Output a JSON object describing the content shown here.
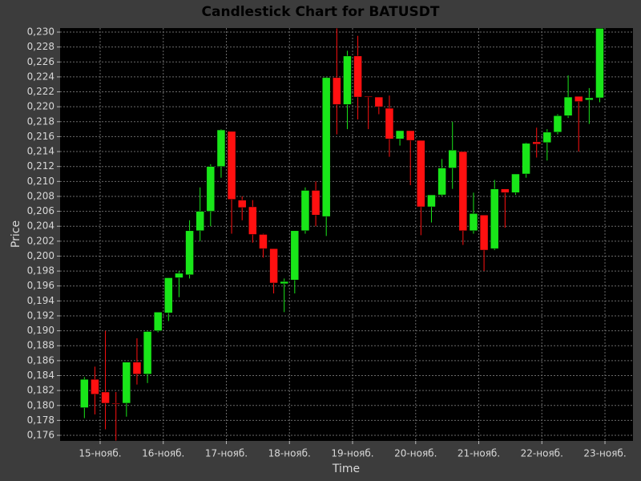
{
  "chart_data": {
    "type": "candlestick",
    "title": "Candlestick Chart for BATUSDT",
    "x_label": "Time",
    "y_label": "Price",
    "x": [
      14.75,
      14.9167,
      15.0833,
      15.25,
      15.4167,
      15.5833,
      15.75,
      15.9167,
      16.0833,
      16.25,
      16.4167,
      16.5833,
      16.75,
      16.9167,
      17.0833,
      17.25,
      17.4167,
      17.5833,
      17.75,
      17.9167,
      18.0833,
      18.25,
      18.4167,
      18.5833,
      18.75,
      18.9167,
      19.0833,
      19.25,
      19.4167,
      19.5833,
      19.75,
      19.9167,
      20.0833,
      20.25,
      20.4167,
      20.5833,
      20.75,
      20.9167,
      21.0833,
      21.25,
      21.4167,
      21.5833,
      21.75,
      21.9167,
      22.0833,
      22.25,
      22.4167,
      22.5833,
      22.75,
      22.9167
    ],
    "open": [
      0.1797,
      0.1835,
      0.1818,
      0.1803,
      0.1803,
      0.1858,
      0.1842,
      0.19,
      0.1924,
      0.1971,
      0.1975,
      0.2034,
      0.206,
      0.212,
      0.2167,
      0.2075,
      0.2066,
      0.2029,
      0.201,
      0.1963,
      0.1968,
      0.2034,
      0.2088,
      0.2053,
      0.2239,
      0.2203,
      0.2268,
      0.2214,
      0.2213,
      0.2198,
      0.2157,
      0.2168,
      0.2155,
      0.2066,
      0.2082,
      0.2118,
      0.214,
      0.2034,
      0.2055,
      0.201,
      0.209,
      0.2085,
      0.211,
      0.2153,
      0.2152,
      0.2166,
      0.2188,
      0.2214,
      0.2209,
      0.2212
    ],
    "high": [
      0.1838,
      0.1852,
      0.19,
      0.1818,
      0.1858,
      0.189,
      0.19,
      0.1925,
      0.1971,
      0.198,
      0.2048,
      0.2092,
      0.2123,
      0.217,
      0.2167,
      0.208,
      0.2075,
      0.203,
      0.201,
      0.197,
      0.2034,
      0.2092,
      0.21,
      0.224,
      0.2305,
      0.2275,
      0.2295,
      0.2214,
      0.2213,
      0.2215,
      0.2168,
      0.2168,
      0.2155,
      0.2082,
      0.213,
      0.218,
      0.214,
      0.2085,
      0.2055,
      0.2102,
      0.209,
      0.211,
      0.2152,
      0.2172,
      0.217,
      0.219,
      0.2242,
      0.2214,
      0.2225,
      0.2305
    ],
    "low": [
      0.1783,
      0.1788,
      0.1768,
      0.1753,
      0.1785,
      0.1828,
      0.183,
      0.1898,
      0.1913,
      0.1945,
      0.197,
      0.202,
      0.204,
      0.2105,
      0.203,
      0.2048,
      0.2018,
      0.1998,
      0.195,
      0.1925,
      0.195,
      0.203,
      0.204,
      0.2027,
      0.2163,
      0.217,
      0.2183,
      0.217,
      0.219,
      0.2133,
      0.2148,
      0.2095,
      0.2028,
      0.2045,
      0.208,
      0.209,
      0.2015,
      0.203,
      0.198,
      0.2008,
      0.2038,
      0.2082,
      0.2105,
      0.2132,
      0.2128,
      0.2163,
      0.2185,
      0.214,
      0.2177,
      0.2206
    ],
    "close": [
      0.1835,
      0.1815,
      0.1803,
      0.1802,
      0.1858,
      0.1842,
      0.1899,
      0.1925,
      0.1971,
      0.1977,
      0.2034,
      0.206,
      0.212,
      0.2169,
      0.2076,
      0.2065,
      0.2029,
      0.201,
      0.1964,
      0.1966,
      0.2034,
      0.2088,
      0.2055,
      0.2239,
      0.2203,
      0.2268,
      0.2213,
      0.2213,
      0.22,
      0.2157,
      0.2168,
      0.2155,
      0.2066,
      0.2082,
      0.2118,
      0.2142,
      0.2034,
      0.2057,
      0.2008,
      0.209,
      0.2085,
      0.211,
      0.2151,
      0.215,
      0.2166,
      0.2188,
      0.2213,
      0.2207,
      0.2212,
      0.2305
    ],
    "up_color": "#19e619",
    "down_color": "#ff1010",
    "xlim": [
      14.365,
      23.444
    ],
    "xticks": [
      {
        "value": 15,
        "label": "15-нояб."
      },
      {
        "value": 16,
        "label": "16-нояб."
      },
      {
        "value": 17,
        "label": "17-нояб."
      },
      {
        "value": 18,
        "label": "18-нояб."
      },
      {
        "value": 19,
        "label": "19-нояб."
      },
      {
        "value": 20,
        "label": "20-нояб."
      },
      {
        "value": 21,
        "label": "21-нояб."
      },
      {
        "value": 22,
        "label": "22-нояб."
      },
      {
        "value": 23,
        "label": "23-нояб."
      }
    ],
    "ylim": [
      0.17525,
      0.23054
    ],
    "yticks": [
      {
        "value": 0.176,
        "label": "0,176"
      },
      {
        "value": 0.178,
        "label": "0,178"
      },
      {
        "value": 0.18,
        "label": "0,180"
      },
      {
        "value": 0.182,
        "label": "0,182"
      },
      {
        "value": 0.184,
        "label": "0,184"
      },
      {
        "value": 0.186,
        "label": "0,186"
      },
      {
        "value": 0.188,
        "label": "0,188"
      },
      {
        "value": 0.19,
        "label": "0,190"
      },
      {
        "value": 0.192,
        "label": "0,192"
      },
      {
        "value": 0.194,
        "label": "0,194"
      },
      {
        "value": 0.196,
        "label": "0,196"
      },
      {
        "value": 0.198,
        "label": "0,198"
      },
      {
        "value": 0.2,
        "label": "0,200"
      },
      {
        "value": 0.202,
        "label": "0,202"
      },
      {
        "value": 0.204,
        "label": "0,204"
      },
      {
        "value": 0.206,
        "label": "0,206"
      },
      {
        "value": 0.208,
        "label": "0,208"
      },
      {
        "value": 0.21,
        "label": "0,210"
      },
      {
        "value": 0.212,
        "label": "0,212"
      },
      {
        "value": 0.214,
        "label": "0,214"
      },
      {
        "value": 0.216,
        "label": "0,216"
      },
      {
        "value": 0.218,
        "label": "0,218"
      },
      {
        "value": 0.22,
        "label": "0,220"
      },
      {
        "value": 0.222,
        "label": "0,222"
      },
      {
        "value": 0.224,
        "label": "0,224"
      },
      {
        "value": 0.226,
        "label": "0,226"
      },
      {
        "value": 0.228,
        "label": "0,228"
      },
      {
        "value": 0.23,
        "label": "0,230"
      }
    ],
    "grid": true
  }
}
